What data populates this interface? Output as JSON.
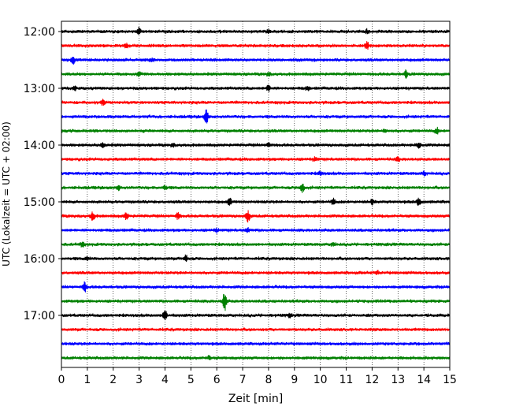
{
  "chart_data": {
    "type": "line",
    "title": "",
    "xlabel": "Zeit  [min]",
    "ylabel": "UTC (Lokalzeit = UTC + 02:00)",
    "xlim": [
      0,
      15
    ],
    "x_ticks": [
      "0",
      "1",
      "2",
      "3",
      "4",
      "5",
      "6",
      "7",
      "8",
      "9",
      "10",
      "11",
      "12",
      "13",
      "14",
      "15"
    ],
    "y_ticks": [
      "12:00",
      "13:00",
      "14:00",
      "15:00",
      "16:00",
      "17:00"
    ],
    "y_tick_rows": [
      0,
      4,
      8,
      12,
      16,
      20
    ],
    "grid": "vertical dotted",
    "row_interval_minutes": 15,
    "rows": [
      {
        "start": "12:00",
        "color": "#000000",
        "bursts": [
          {
            "t": 3.0,
            "a": 1.6
          },
          {
            "t": 11.8,
            "a": 1.0
          },
          {
            "t": 8.0,
            "a": 0.9
          }
        ]
      },
      {
        "start": "12:15",
        "color": "#ff0000",
        "bursts": [
          {
            "t": 11.8,
            "a": 2.0
          },
          {
            "t": 2.5,
            "a": 0.8
          }
        ]
      },
      {
        "start": "12:30",
        "color": "#0000ff",
        "bursts": [
          {
            "t": 0.45,
            "a": 2.2
          },
          {
            "t": 3.5,
            "a": 0.8
          }
        ]
      },
      {
        "start": "12:45",
        "color": "#008000",
        "bursts": [
          {
            "t": 13.3,
            "a": 1.8
          },
          {
            "t": 3.0,
            "a": 1.0
          },
          {
            "t": 8.0,
            "a": 0.8
          }
        ]
      },
      {
        "start": "13:00",
        "color": "#000000",
        "bursts": [
          {
            "t": 8.0,
            "a": 1.5
          },
          {
            "t": 9.5,
            "a": 1.0
          },
          {
            "t": 0.5,
            "a": 1.0
          }
        ]
      },
      {
        "start": "13:15",
        "color": "#ff0000",
        "bursts": [
          {
            "t": 1.6,
            "a": 1.2
          }
        ]
      },
      {
        "start": "13:30",
        "color": "#0000ff",
        "bursts": [
          {
            "t": 5.6,
            "a": 3.5
          }
        ]
      },
      {
        "start": "13:45",
        "color": "#008000",
        "bursts": [
          {
            "t": 14.5,
            "a": 1.5
          },
          {
            "t": 12.5,
            "a": 0.8
          }
        ]
      },
      {
        "start": "14:00",
        "color": "#000000",
        "bursts": [
          {
            "t": 1.6,
            "a": 1.2
          },
          {
            "t": 13.8,
            "a": 1.6
          },
          {
            "t": 8.0,
            "a": 1.0
          },
          {
            "t": 4.3,
            "a": 0.8
          }
        ]
      },
      {
        "start": "14:15",
        "color": "#ff0000",
        "bursts": [
          {
            "t": 9.8,
            "a": 1.0
          },
          {
            "t": 13.0,
            "a": 1.0
          }
        ]
      },
      {
        "start": "14:30",
        "color": "#0000ff",
        "bursts": [
          {
            "t": 10.0,
            "a": 1.0
          },
          {
            "t": 14.0,
            "a": 1.0
          }
        ]
      },
      {
        "start": "14:45",
        "color": "#008000",
        "bursts": [
          {
            "t": 9.3,
            "a": 2.8
          },
          {
            "t": 2.2,
            "a": 1.0
          },
          {
            "t": 4.0,
            "a": 1.0
          }
        ]
      },
      {
        "start": "15:00",
        "color": "#000000",
        "bursts": [
          {
            "t": 6.5,
            "a": 1.8
          },
          {
            "t": 13.8,
            "a": 2.0
          },
          {
            "t": 10.5,
            "a": 1.5
          },
          {
            "t": 12.0,
            "a": 1.2
          }
        ]
      },
      {
        "start": "15:15",
        "color": "#ff0000",
        "bursts": [
          {
            "t": 1.2,
            "a": 2.5
          },
          {
            "t": 7.2,
            "a": 3.0
          },
          {
            "t": 4.5,
            "a": 1.6
          },
          {
            "t": 2.5,
            "a": 1.5
          }
        ]
      },
      {
        "start": "15:30",
        "color": "#0000ff",
        "bursts": [
          {
            "t": 7.2,
            "a": 1.0
          },
          {
            "t": 6.0,
            "a": 0.8
          }
        ]
      },
      {
        "start": "15:45",
        "color": "#008000",
        "bursts": [
          {
            "t": 0.8,
            "a": 1.2
          },
          {
            "t": 10.5,
            "a": 0.8
          }
        ]
      },
      {
        "start": "16:00",
        "color": "#000000",
        "bursts": [
          {
            "t": 4.8,
            "a": 1.6
          },
          {
            "t": 1.0,
            "a": 0.8
          }
        ]
      },
      {
        "start": "16:15",
        "color": "#ff0000",
        "bursts": [
          {
            "t": 12.2,
            "a": 0.9
          }
        ]
      },
      {
        "start": "16:30",
        "color": "#0000ff",
        "bursts": [
          {
            "t": 0.9,
            "a": 2.5
          }
        ]
      },
      {
        "start": "16:45",
        "color": "#008000",
        "bursts": [
          {
            "t": 6.3,
            "a": 5.0
          }
        ]
      },
      {
        "start": "17:00",
        "color": "#000000",
        "bursts": [
          {
            "t": 4.0,
            "a": 3.0
          },
          {
            "t": 8.8,
            "a": 0.8
          }
        ]
      },
      {
        "start": "17:15",
        "color": "#ff0000",
        "bursts": []
      },
      {
        "start": "17:30",
        "color": "#0000ff",
        "bursts": []
      },
      {
        "start": "17:45",
        "color": "#008000",
        "bursts": [
          {
            "t": 5.7,
            "a": 0.8
          }
        ]
      }
    ]
  }
}
